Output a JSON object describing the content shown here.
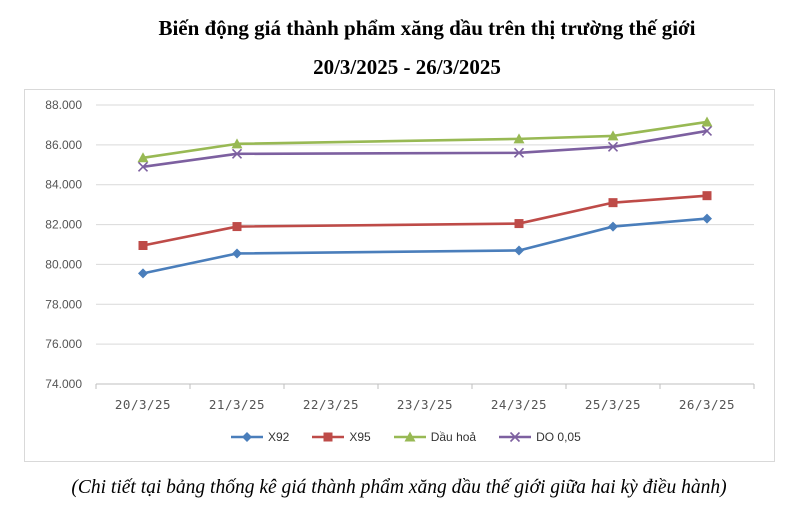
{
  "title_line1": "Biến động giá thành phẩm xăng dầu trên thị trường thế giới",
  "title_line2": "20/3/2025 - 26/3/2025",
  "footnote": "(Chi tiết tại bảng thống kê giá thành phẩm xăng dầu thế giới giữa hai kỳ điều hành)",
  "chart_data": {
    "type": "line",
    "title": "Biến động giá thành phẩm xăng dầu trên thị trường thế giới",
    "subtitle": "20/3/2025 - 26/3/2025",
    "categories": [
      "20/3/25",
      "21/3/25",
      "22/3/25",
      "23/3/25",
      "24/3/25",
      "25/3/25",
      "26/3/25"
    ],
    "ylim": [
      74000,
      88000
    ],
    "yticks": [
      74000,
      76000,
      78000,
      80000,
      82000,
      84000,
      86000,
      88000
    ],
    "ytick_labels": [
      "74.000",
      "76.000",
      "78.000",
      "80.000",
      "82.000",
      "84.000",
      "86.000",
      "88.000"
    ],
    "grid": true,
    "legend_position": "bottom",
    "series": [
      {
        "name": "X92",
        "color": "#4a7ebb",
        "marker": "diamond",
        "points": [
          [
            0,
            79550
          ],
          [
            1,
            80550
          ],
          [
            4,
            80700
          ],
          [
            5,
            81900
          ],
          [
            6,
            82300
          ]
        ]
      },
      {
        "name": "X95",
        "color": "#be4b48",
        "marker": "square",
        "points": [
          [
            0,
            80950
          ],
          [
            1,
            81900
          ],
          [
            4,
            82050
          ],
          [
            5,
            83100
          ],
          [
            6,
            83450
          ]
        ]
      },
      {
        "name": "Dầu hoả",
        "color": "#98b954",
        "marker": "triangle",
        "points": [
          [
            0,
            85350
          ],
          [
            1,
            86050
          ],
          [
            4,
            86300
          ],
          [
            5,
            86450
          ],
          [
            6,
            87150
          ]
        ]
      },
      {
        "name": "DO 0,05",
        "color": "#7d60a0",
        "marker": "x",
        "points": [
          [
            0,
            84900
          ],
          [
            1,
            85550
          ],
          [
            4,
            85600
          ],
          [
            5,
            85900
          ],
          [
            6,
            86700
          ]
        ]
      }
    ]
  }
}
